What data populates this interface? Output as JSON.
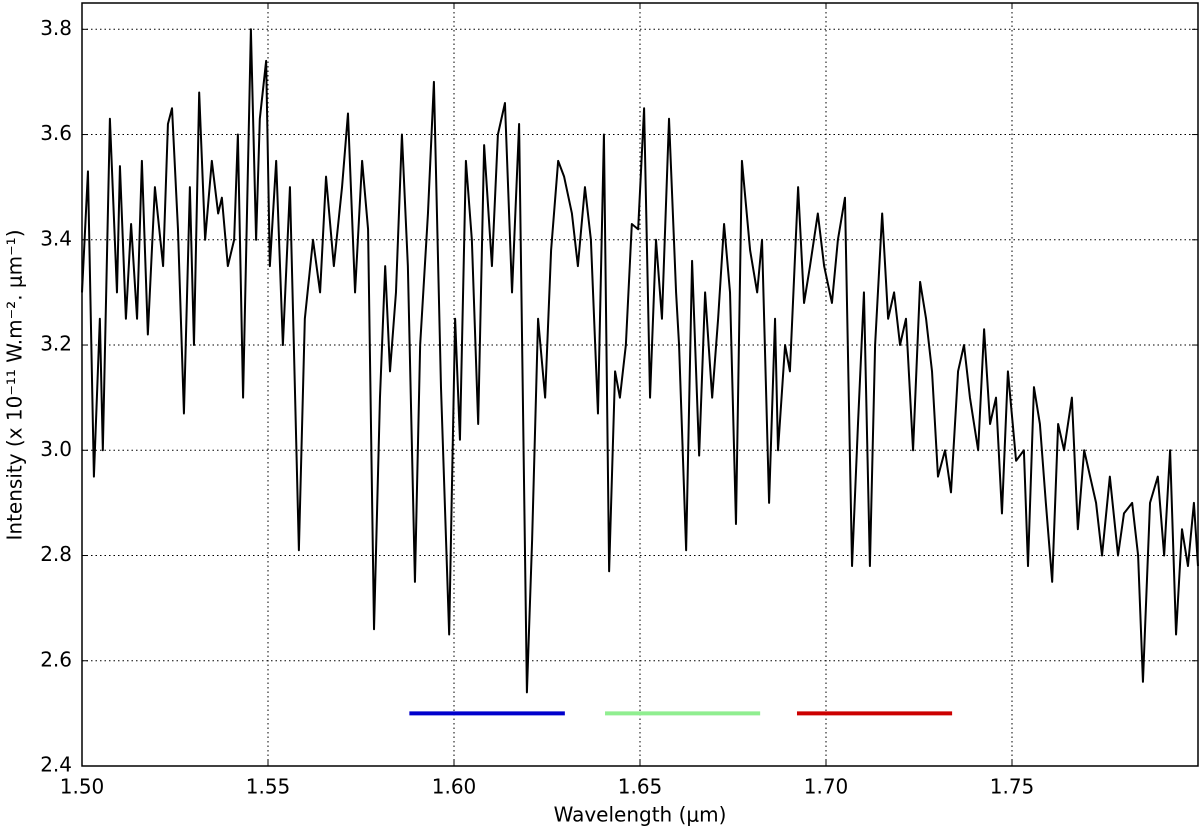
{
  "chart_data": {
    "type": "line",
    "xlabel": "Wavelength (μm)",
    "ylabel": "Intensity (x 10⁻¹¹ W.m⁻². μm⁻¹)",
    "xlim": [
      1.5,
      1.8
    ],
    "ylim": [
      2.4,
      3.85
    ],
    "xticks": [
      {
        "value": 1.5,
        "label": "1.50"
      },
      1.55,
      {
        "value": 1.6,
        "label": "1.60"
      },
      1.65,
      {
        "value": 1.7,
        "label": "1.70"
      },
      1.75
    ],
    "yticks": [
      2.4,
      2.6,
      2.8,
      {
        "value": 3.0,
        "label": "3.0"
      },
      3.2,
      3.4,
      3.6,
      3.8
    ],
    "grid": true,
    "series": [
      {
        "color": "#000000",
        "x": [
          1.5,
          1.5016,
          1.5032,
          1.5048,
          1.5056,
          1.5075,
          1.5094,
          1.5102,
          1.5118,
          1.5132,
          1.5148,
          1.5161,
          1.5177,
          1.5196,
          1.5218,
          1.5231,
          1.5242,
          1.5258,
          1.5274,
          1.529,
          1.5301,
          1.5315,
          1.5331,
          1.5349,
          1.5366,
          1.5376,
          1.5392,
          1.5409,
          1.5419,
          1.5433,
          1.5454,
          1.5468,
          1.5478,
          1.5495,
          1.5505,
          1.5522,
          1.554,
          1.5559,
          1.5583,
          1.5599,
          1.5621,
          1.564,
          1.5656,
          1.5677,
          1.5699,
          1.5715,
          1.5734,
          1.5753,
          1.5769,
          1.5785,
          1.5801,
          1.5815,
          1.5828,
          1.5844,
          1.586,
          1.5876,
          1.5895,
          1.5909,
          1.593,
          1.5946,
          1.5965,
          1.5987,
          1.6003,
          1.6016,
          1.6032,
          1.6048,
          1.6065,
          1.6081,
          1.6102,
          1.6118,
          1.6137,
          1.6156,
          1.6175,
          1.6196,
          1.621,
          1.6226,
          1.6245,
          1.6261,
          1.628,
          1.6296,
          1.6317,
          1.6333,
          1.6352,
          1.6368,
          1.6387,
          1.6403,
          1.6417,
          1.6433,
          1.6446,
          1.6462,
          1.6478,
          1.6495,
          1.6511,
          1.6527,
          1.6543,
          1.6559,
          1.6578,
          1.6597,
          1.6605,
          1.6624,
          1.664,
          1.6659,
          1.6675,
          1.6694,
          1.671,
          1.6726,
          1.6742,
          1.6758,
          1.6774,
          1.6796,
          1.6815,
          1.6828,
          1.6847,
          1.6863,
          1.6871,
          1.689,
          1.6903,
          1.6925,
          1.6941,
          1.6957,
          1.6978,
          1.6995,
          1.7016,
          1.7032,
          1.7051,
          1.707,
          1.7086,
          1.7102,
          1.7118,
          1.7132,
          1.7151,
          1.7167,
          1.7183,
          1.7199,
          1.7215,
          1.7234,
          1.7253,
          1.7269,
          1.7285,
          1.7301,
          1.732,
          1.7336,
          1.7355,
          1.7371,
          1.7387,
          1.7409,
          1.7425,
          1.7441,
          1.7457,
          1.7473,
          1.7489,
          1.7511,
          1.7532,
          1.7543,
          1.7559,
          1.7575,
          1.7591,
          1.7608,
          1.7624,
          1.764,
          1.7661,
          1.7677,
          1.7694,
          1.771,
          1.7726,
          1.7742,
          1.7763,
          1.7785,
          1.7801,
          1.7823,
          1.7839,
          1.7852,
          1.7871,
          1.7892,
          1.7909,
          1.7925,
          1.7941,
          1.7957,
          1.7973,
          1.7989,
          1.8
        ],
        "values": [
          3.3,
          3.53,
          2.95,
          3.25,
          3.0,
          3.63,
          3.3,
          3.54,
          3.25,
          3.43,
          3.25,
          3.55,
          3.22,
          3.5,
          3.35,
          3.62,
          3.65,
          3.42,
          3.07,
          3.5,
          3.2,
          3.68,
          3.4,
          3.55,
          3.45,
          3.48,
          3.35,
          3.4,
          3.6,
          3.1,
          3.8,
          3.4,
          3.63,
          3.74,
          3.35,
          3.55,
          3.2,
          3.5,
          2.81,
          3.25,
          3.4,
          3.3,
          3.52,
          3.35,
          3.5,
          3.64,
          3.3,
          3.55,
          3.42,
          2.66,
          3.1,
          3.35,
          3.15,
          3.3,
          3.6,
          3.35,
          2.75,
          3.2,
          3.45,
          3.7,
          3.12,
          2.65,
          3.25,
          3.02,
          3.55,
          3.4,
          3.05,
          3.58,
          3.35,
          3.6,
          3.66,
          3.3,
          3.62,
          2.54,
          2.83,
          3.25,
          3.1,
          3.38,
          3.55,
          3.52,
          3.45,
          3.35,
          3.5,
          3.4,
          3.07,
          3.6,
          2.77,
          3.15,
          3.1,
          3.2,
          3.43,
          3.42,
          3.65,
          3.1,
          3.4,
          3.25,
          3.63,
          3.3,
          3.2,
          2.81,
          3.36,
          2.99,
          3.3,
          3.1,
          3.25,
          3.43,
          3.3,
          2.86,
          3.55,
          3.38,
          3.3,
          3.4,
          2.9,
          3.25,
          3.0,
          3.2,
          3.15,
          3.5,
          3.28,
          3.35,
          3.45,
          3.35,
          3.28,
          3.4,
          3.48,
          2.78,
          3.05,
          3.3,
          2.78,
          3.2,
          3.45,
          3.25,
          3.3,
          3.2,
          3.25,
          3.0,
          3.32,
          3.25,
          3.15,
          2.95,
          3.0,
          2.92,
          3.15,
          3.2,
          3.1,
          3.0,
          3.23,
          3.05,
          3.1,
          2.88,
          3.15,
          2.98,
          3.0,
          2.78,
          3.12,
          3.05,
          2.9,
          2.75,
          3.05,
          3.0,
          3.1,
          2.85,
          3.0,
          2.95,
          2.9,
          2.8,
          2.95,
          2.8,
          2.88,
          2.9,
          2.8,
          2.56,
          2.9,
          2.95,
          2.8,
          3.0,
          2.65,
          2.85,
          2.78,
          2.9,
          2.78
        ]
      },
      {
        "color": "#0000cc",
        "x": [
          1.588,
          1.6298
        ],
        "values": [
          2.5,
          2.5
        ]
      },
      {
        "color": "#90ee90",
        "x": [
          1.6406,
          1.6823
        ],
        "values": [
          2.5,
          2.5
        ]
      },
      {
        "color": "#cc0000",
        "x": [
          1.6922,
          1.7339
        ],
        "values": [
          2.5,
          2.5
        ]
      }
    ]
  }
}
